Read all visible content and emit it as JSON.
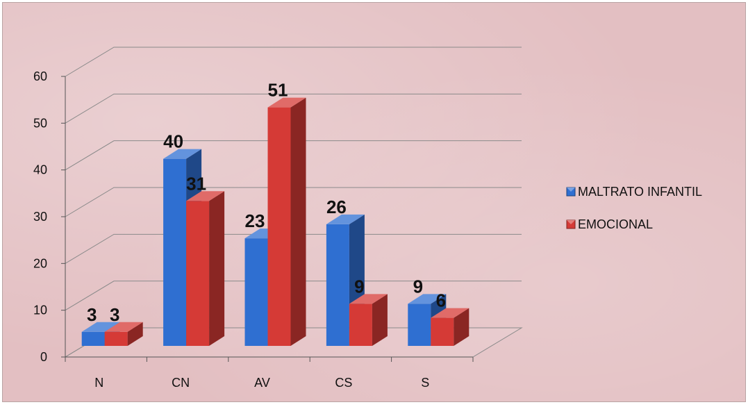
{
  "chart_data": {
    "type": "bar",
    "categories": [
      "N",
      "CN",
      "AV",
      "CS",
      "S"
    ],
    "series": [
      {
        "name": "MALTRATO INFANTIL",
        "values": [
          3,
          40,
          23,
          26,
          9
        ],
        "color": "#2f6fd1"
      },
      {
        "name": "EMOCIONAL",
        "values": [
          3,
          31,
          51,
          9,
          6
        ],
        "color": "#d53a36"
      }
    ],
    "yticks": [
      "0",
      "10",
      "20",
      "30",
      "40",
      "50",
      "60"
    ],
    "ylim": [
      0,
      60
    ],
    "grid": true,
    "legend_position": "right",
    "style": "3d-clustered-column",
    "background": "#e3bfc2"
  }
}
